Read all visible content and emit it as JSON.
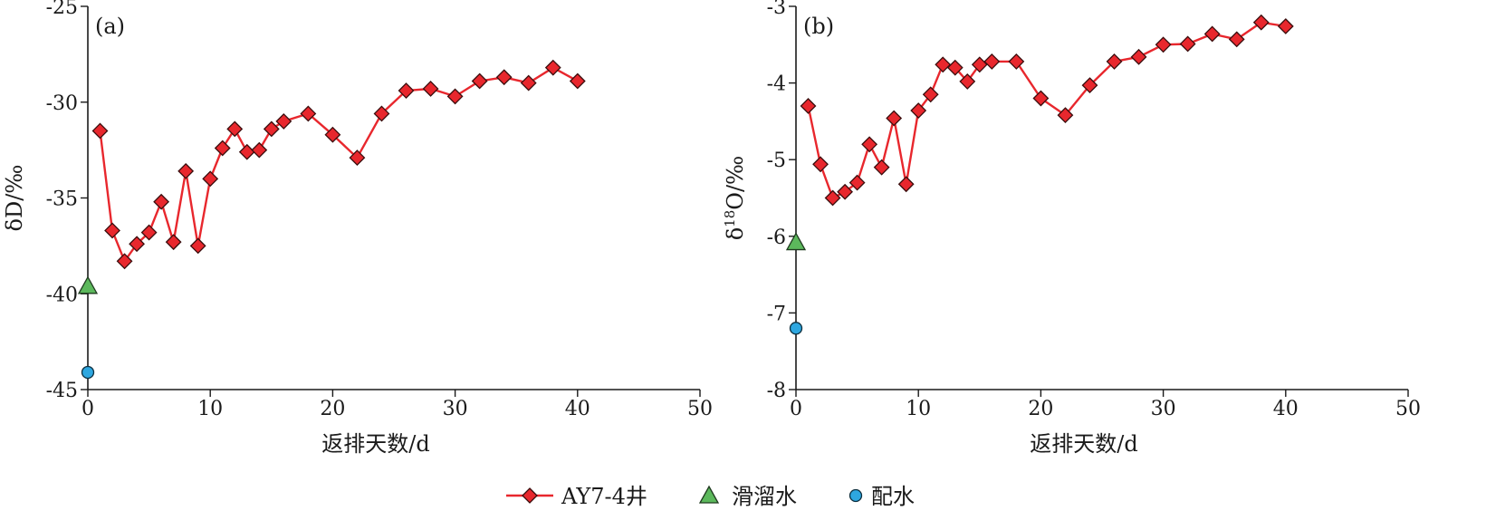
{
  "chart_data": [
    {
      "type": "line",
      "panel_label": "(a)",
      "xlabel": "返排天数/d",
      "ylabel": "δD/‰",
      "xlim": [
        0,
        50
      ],
      "ylim": [
        -45,
        -25
      ],
      "xticks": [
        0,
        10,
        20,
        30,
        40,
        50
      ],
      "yticks": [
        -45,
        -40,
        -35,
        -30,
        -25
      ],
      "grid": false,
      "series": [
        {
          "name": "AY7-4井",
          "marker": "diamond",
          "color": "#e8272d",
          "x": [
            1,
            2,
            3,
            4,
            5,
            6,
            7,
            8,
            9,
            10,
            11,
            12,
            13,
            14,
            15,
            16,
            18,
            20,
            22,
            24,
            26,
            28,
            30,
            32,
            34,
            36,
            38,
            40
          ],
          "y": [
            -31.5,
            -36.7,
            -38.3,
            -37.4,
            -36.8,
            -35.2,
            -37.3,
            -33.6,
            -37.5,
            -34.0,
            -32.4,
            -31.4,
            -32.6,
            -32.5,
            -31.4,
            -31.0,
            -30.6,
            -31.7,
            -32.9,
            -30.6,
            -29.4,
            -29.3,
            -29.7,
            -28.9,
            -28.7,
            -29.0,
            -28.2,
            -28.9
          ]
        },
        {
          "name": "滑溜水",
          "marker": "triangle",
          "color": "#5cb85c",
          "x": [
            0
          ],
          "y": [
            -39.6
          ]
        },
        {
          "name": "配水",
          "marker": "circle",
          "color": "#2ea7e0",
          "x": [
            0
          ],
          "y": [
            -44.1
          ]
        }
      ]
    },
    {
      "type": "line",
      "panel_label": "(b)",
      "xlabel": "返排天数/d",
      "ylabel": "δ18O/‰",
      "ylabel_parts": {
        "prefix": "δ",
        "superscript": "18",
        "suffix": "O/‰"
      },
      "xlim": [
        0,
        50
      ],
      "ylim": [
        -8,
        -3
      ],
      "xticks": [
        0,
        10,
        20,
        30,
        40,
        50
      ],
      "yticks": [
        -8,
        -7,
        -6,
        -5,
        -4,
        -3
      ],
      "grid": false,
      "series": [
        {
          "name": "AY7-4井",
          "marker": "diamond",
          "color": "#e8272d",
          "x": [
            1,
            2,
            3,
            4,
            5,
            6,
            7,
            8,
            9,
            10,
            11,
            12,
            13,
            14,
            15,
            16,
            18,
            20,
            22,
            24,
            26,
            28,
            30,
            32,
            34,
            36,
            38,
            40
          ],
          "y": [
            -4.3,
            -5.06,
            -5.5,
            -5.42,
            -5.3,
            -4.8,
            -5.1,
            -4.46,
            -5.32,
            -4.36,
            -4.15,
            -3.76,
            -3.8,
            -3.98,
            -3.76,
            -3.72,
            -3.72,
            -4.2,
            -4.42,
            -4.03,
            -3.72,
            -3.66,
            -3.5,
            -3.49,
            -3.36,
            -3.43,
            -3.21,
            -3.26
          ]
        },
        {
          "name": "滑溜水",
          "marker": "triangle",
          "color": "#5cb85c",
          "x": [
            0
          ],
          "y": [
            -6.08
          ]
        },
        {
          "name": "配水",
          "marker": "circle",
          "color": "#2ea7e0",
          "x": [
            0
          ],
          "y": [
            -7.2
          ]
        }
      ]
    }
  ],
  "legend": {
    "placement": "bottom-center",
    "items": [
      {
        "label": "AY7-4井",
        "marker": "diamond",
        "color": "#e8272d"
      },
      {
        "label": "滑溜水",
        "marker": "triangle",
        "color": "#5cb85c"
      },
      {
        "label": "配水",
        "marker": "circle",
        "color": "#2ea7e0"
      }
    ]
  },
  "colors": {
    "axis": "#1a1a1a",
    "line": "#e8272d",
    "marker_edge": "#3a0d0d"
  }
}
